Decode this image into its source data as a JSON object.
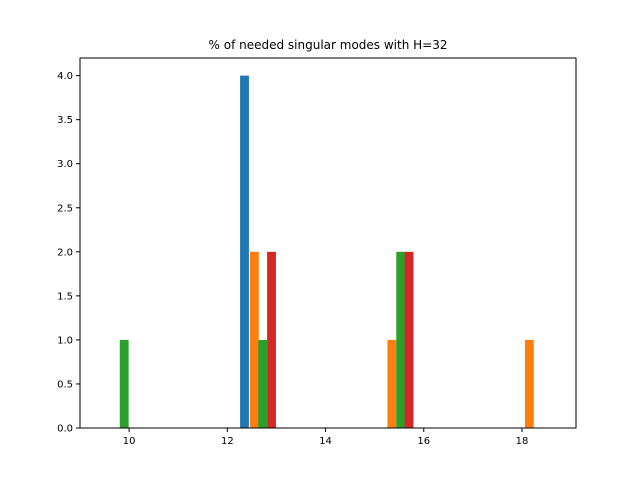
{
  "chart_data": {
    "type": "bar",
    "title": "% of needed singular modes with H=32",
    "xlabel": "",
    "ylabel": "",
    "xlim": [
      9.0,
      19.1
    ],
    "ylim": [
      0,
      4.2
    ],
    "xticks": [
      10,
      12,
      14,
      16,
      18
    ],
    "xtick_labels": [
      "10",
      "12",
      "14",
      "16",
      "18"
    ],
    "yticks": [
      0.0,
      0.5,
      1.0,
      1.5,
      2.0,
      2.5,
      3.0,
      3.5,
      4.0
    ],
    "ytick_labels": [
      "0.0",
      "0.5",
      "1.0",
      "1.5",
      "2.0",
      "2.5",
      "3.0",
      "3.5",
      "4.0"
    ],
    "grid": false,
    "bar_width": 0.18,
    "series": [
      {
        "color": "#1f77b4",
        "bars": [
          {
            "x": 12.35,
            "value": 4
          }
        ]
      },
      {
        "color": "#ff7f0e",
        "bars": [
          {
            "x": 12.55,
            "value": 2
          },
          {
            "x": 15.35,
            "value": 1
          },
          {
            "x": 18.15,
            "value": 1
          }
        ]
      },
      {
        "color": "#2ca02c",
        "bars": [
          {
            "x": 9.9,
            "value": 1
          },
          {
            "x": 12.72,
            "value": 1
          },
          {
            "x": 15.53,
            "value": 2
          }
        ]
      },
      {
        "color": "#d62728",
        "bars": [
          {
            "x": 12.9,
            "value": 2
          },
          {
            "x": 15.7,
            "value": 2
          }
        ]
      }
    ]
  }
}
